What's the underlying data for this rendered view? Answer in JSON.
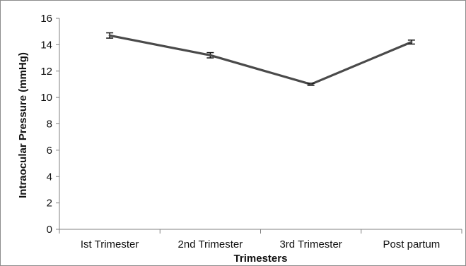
{
  "chart_data": {
    "type": "line",
    "categories": [
      "Ist Trimester",
      "2nd Trimester",
      "3rd Trimester",
      "Post partum"
    ],
    "series": [
      {
        "values": [
          14.7,
          13.2,
          11.0,
          14.2
        ],
        "error": [
          0.2,
          0.2,
          0.08,
          0.15
        ],
        "color": "#4a4a4a"
      }
    ],
    "xlabel": "Trimesters",
    "ylabel": "Intraocular Pressure (mmHg)",
    "ylim": [
      0,
      16
    ],
    "yticks": [
      0,
      2,
      4,
      6,
      8,
      10,
      12,
      14,
      16
    ],
    "grid": false,
    "legend": "none"
  }
}
